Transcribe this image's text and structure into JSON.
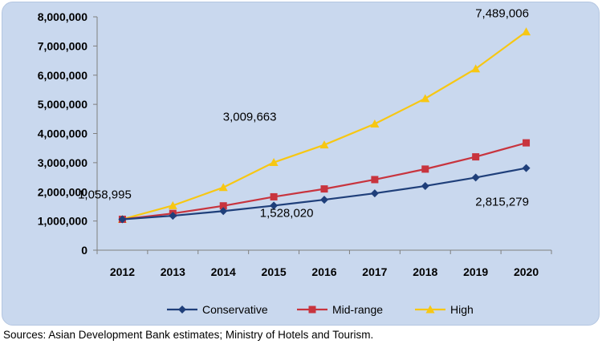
{
  "chart_data": {
    "type": "line",
    "title": "",
    "xlabel": "",
    "ylabel": "",
    "x": [
      "2012",
      "2013",
      "2014",
      "2015",
      "2016",
      "2017",
      "2018",
      "2019",
      "2020"
    ],
    "ylim": [
      0,
      8000000
    ],
    "yticks": [
      "0",
      "1,000,000",
      "2,000,000",
      "3,000,000",
      "4,000,000",
      "5,000,000",
      "6,000,000",
      "7,000,000",
      "8,000,000"
    ],
    "grid": false,
    "legend_position": "bottom",
    "series": [
      {
        "name": "Conservative",
        "color": "#1f3f7a",
        "marker": "diamond",
        "values": [
          1058995,
          1180000,
          1340000,
          1528020,
          1730000,
          1950000,
          2200000,
          2490000,
          2815279
        ]
      },
      {
        "name": "Mid-range",
        "color": "#c8343e",
        "marker": "square",
        "values": [
          1058995,
          1260000,
          1520000,
          1830000,
          2100000,
          2420000,
          2780000,
          3200000,
          3680000
        ]
      },
      {
        "name": "High",
        "color": "#f7c713",
        "marker": "triangle",
        "values": [
          1058995,
          1530000,
          2150000,
          3009663,
          3610000,
          4330000,
          5200000,
          6220000,
          7489006
        ]
      }
    ],
    "annotations": [
      {
        "text": "1,058,995",
        "x": "2012",
        "y": 1058995
      },
      {
        "text": "1,528,020",
        "x": "2015",
        "y": 1528020
      },
      {
        "text": "3,009,663",
        "x": "2015",
        "y": 3009663
      },
      {
        "text": "2,815,279",
        "x": "2020",
        "y": 2815279
      },
      {
        "text": "7,489,006",
        "x": "2020",
        "y": 7489006
      }
    ]
  },
  "source_note": "Sources: Asian Development Bank estimates; Ministry of Hotels and Tourism."
}
